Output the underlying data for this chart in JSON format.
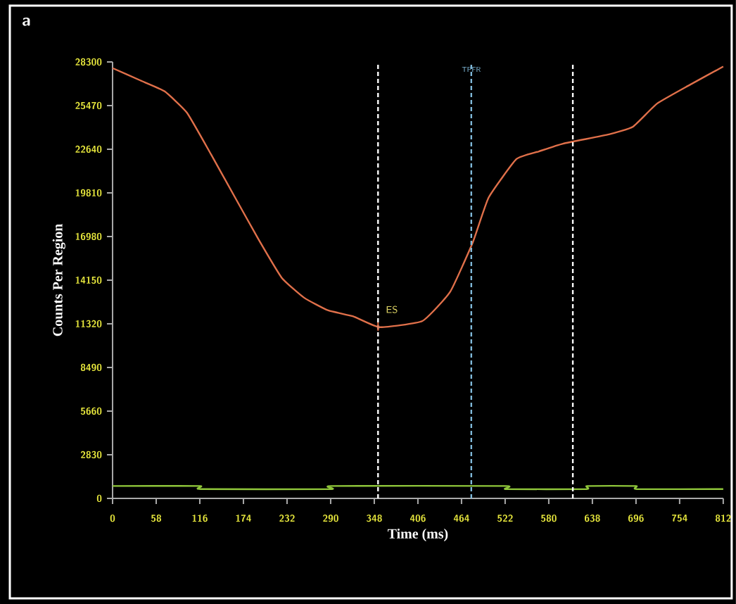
{
  "chart_data": {
    "type": "line",
    "xlabel": "Time (ms)",
    "ylabel": "Counts Per Region",
    "xlim": [
      0,
      812
    ],
    "ylim": [
      0,
      28300
    ],
    "xticks": [
      0,
      58,
      116,
      174,
      232,
      290,
      348,
      406,
      464,
      522,
      580,
      638,
      696,
      754,
      812
    ],
    "yticks": [
      0,
      2830,
      5660,
      8490,
      11320,
      14150,
      16980,
      19810,
      22640,
      25470,
      28300
    ],
    "grid": false,
    "marker": "none",
    "line_style": "solid",
    "series": [
      {
        "color": "#e0704a",
        "x": [
          0,
          37,
          69,
          99,
          131,
          163,
          194,
          225,
          255,
          286,
          320,
          355,
          412,
          449,
          479,
          500,
          537,
          567,
          599,
          660,
          692,
          724,
          767,
          812
        ],
        "values": [
          27900,
          27100,
          26400,
          25000,
          22300,
          19500,
          16800,
          14300,
          13000,
          12200,
          11800,
          11100,
          11500,
          13400,
          16600,
          19500,
          22000,
          22500,
          23000,
          23600,
          24100,
          25600,
          26800,
          28000
        ]
      },
      {
        "color": "#8fc63a",
        "x": [
          0,
          116,
          117,
          290,
          291,
          522,
          523,
          630,
          631,
          696,
          697,
          812
        ],
        "values": [
          800,
          800,
          600,
          600,
          800,
          800,
          600,
          600,
          800,
          800,
          600,
          600
        ]
      }
    ],
    "ref_lines": [
      {
        "axis": "x",
        "value": 353,
        "color": "#ffffff",
        "line_style": "dashed"
      },
      {
        "axis": "x",
        "value": 477,
        "label": "TPFR",
        "color": "#7fb8d8",
        "line_style": "dashed"
      },
      {
        "axis": "x",
        "value": 612,
        "color": "#ffffff",
        "line_style": "dashed"
      }
    ],
    "annotations": [
      "a",
      {
        "text": "ES",
        "x": 353,
        "y": 11140
      }
    ]
  }
}
